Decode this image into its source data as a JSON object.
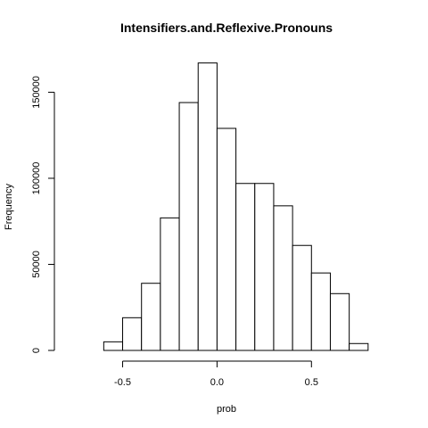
{
  "chart_data": {
    "type": "bar",
    "title": "Intensifiers.and.Reflexive.Pronouns",
    "xlabel": "prob",
    "ylabel": "Frequency",
    "bins": [
      {
        "from": -0.6,
        "to": -0.5,
        "count": 5000
      },
      {
        "from": -0.5,
        "to": -0.4,
        "count": 19000
      },
      {
        "from": -0.4,
        "to": -0.3,
        "count": 39000
      },
      {
        "from": -0.3,
        "to": -0.2,
        "count": 77000
      },
      {
        "from": -0.2,
        "to": -0.1,
        "count": 144000
      },
      {
        "from": -0.1,
        "to": 0.0,
        "count": 167000
      },
      {
        "from": 0.0,
        "to": 0.1,
        "count": 129000
      },
      {
        "from": 0.1,
        "to": 0.2,
        "count": 97000
      },
      {
        "from": 0.2,
        "to": 0.3,
        "count": 97000
      },
      {
        "from": 0.3,
        "to": 0.4,
        "count": 84000
      },
      {
        "from": 0.4,
        "to": 0.5,
        "count": 61000
      },
      {
        "from": 0.5,
        "to": 0.6,
        "count": 45000
      },
      {
        "from": 0.6,
        "to": 0.7,
        "count": 33000
      },
      {
        "from": 0.7,
        "to": 0.8,
        "count": 4000
      }
    ],
    "xlim": [
      -0.8,
      0.9
    ],
    "ylim": [
      0,
      170000
    ],
    "x_ticks": [
      -0.5,
      0.0,
      0.5
    ],
    "x_tick_labels": [
      "-0.5",
      "0.0",
      "0.5"
    ],
    "y_ticks": [
      0,
      50000,
      100000,
      150000
    ],
    "y_tick_labels": [
      "0",
      "50000",
      "100000",
      "150000"
    ],
    "grid": false,
    "legend": "none",
    "bar_fill": "#ffffff",
    "bar_stroke": "#000000"
  }
}
